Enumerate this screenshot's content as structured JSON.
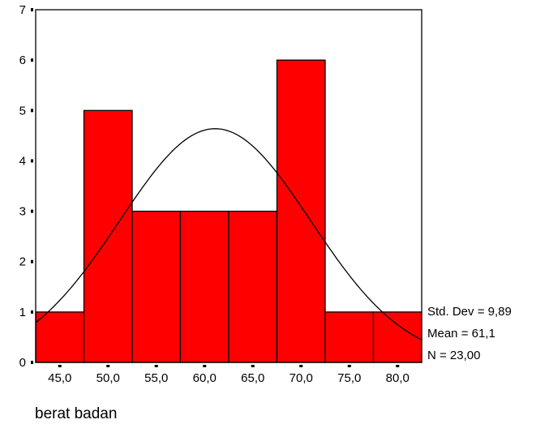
{
  "chart_data": {
    "type": "bar",
    "xlabel": "berat badan",
    "ylabel": "",
    "categories": [
      "45,0",
      "50,0",
      "55,0",
      "60,0",
      "65,0",
      "70,0",
      "75,0",
      "80,0"
    ],
    "bins": [
      {
        "start": 42.5,
        "end": 47.5,
        "value": 1
      },
      {
        "start": 47.5,
        "end": 52.5,
        "value": 5
      },
      {
        "start": 52.5,
        "end": 57.5,
        "value": 3
      },
      {
        "start": 57.5,
        "end": 62.5,
        "value": 3
      },
      {
        "start": 62.5,
        "end": 67.5,
        "value": 3
      },
      {
        "start": 67.5,
        "end": 72.5,
        "value": 6
      },
      {
        "start": 72.5,
        "end": 77.5,
        "value": 1
      },
      {
        "start": 77.5,
        "end": 82.5,
        "value": 1
      }
    ],
    "values": [
      1,
      5,
      3,
      3,
      3,
      6,
      1,
      1
    ],
    "xlim": [
      42.5,
      82.5
    ],
    "ylim": [
      0,
      7
    ],
    "yticks": [
      "0",
      "1",
      "2",
      "3",
      "4",
      "5",
      "6",
      "7"
    ],
    "normal_curve": {
      "mean": 61.1,
      "std_dev": 9.89,
      "n": 23,
      "bin_width": 5
    },
    "stats": {
      "std_dev": "Std. Dev = 9,89",
      "mean": "Mean = 61,1",
      "n": "N = 23,00"
    },
    "grid": false,
    "legend": "none",
    "colors": {
      "bar_fill": "#ff0000",
      "bar_stroke": "#000000",
      "curve": "#000000"
    }
  }
}
